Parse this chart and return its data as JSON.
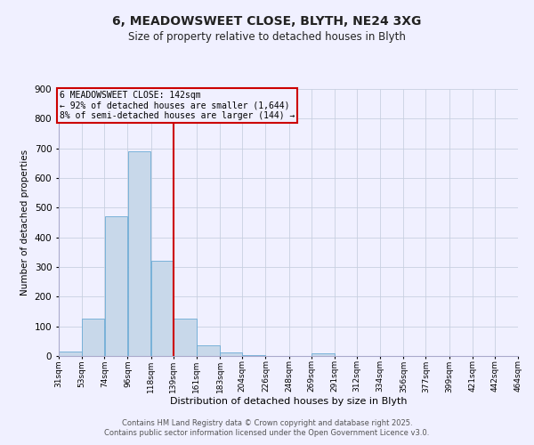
{
  "title": "6, MEADOWSWEET CLOSE, BLYTH, NE24 3XG",
  "subtitle": "Size of property relative to detached houses in Blyth",
  "xlabel": "Distribution of detached houses by size in Blyth",
  "ylabel": "Number of detached properties",
  "bar_edges": [
    31,
    53,
    74,
    96,
    118,
    139,
    161,
    183,
    204,
    226,
    248,
    269,
    291,
    312,
    334,
    356,
    377,
    399,
    421,
    442,
    464
  ],
  "bar_heights": [
    15,
    125,
    470,
    690,
    320,
    125,
    37,
    13,
    3,
    0,
    0,
    8,
    0,
    0,
    0,
    0,
    0,
    0,
    0,
    0
  ],
  "bar_color": "#c8d8ea",
  "bar_edgecolor": "#6aaad4",
  "vline_x": 139,
  "vline_color": "#cc0000",
  "annotation_box_text": "6 MEADOWSWEET CLOSE: 142sqm\n← 92% of detached houses are smaller (1,644)\n8% of semi-detached houses are larger (144) →",
  "annotation_box_color": "#cc0000",
  "ylim": [
    0,
    900
  ],
  "yticks": [
    0,
    100,
    200,
    300,
    400,
    500,
    600,
    700,
    800,
    900
  ],
  "tick_labels": [
    "31sqm",
    "53sqm",
    "74sqm",
    "96sqm",
    "118sqm",
    "139sqm",
    "161sqm",
    "183sqm",
    "204sqm",
    "226sqm",
    "248sqm",
    "269sqm",
    "291sqm",
    "312sqm",
    "334sqm",
    "356sqm",
    "377sqm",
    "399sqm",
    "421sqm",
    "442sqm",
    "464sqm"
  ],
  "footer_line1": "Contains HM Land Registry data © Crown copyright and database right 2025.",
  "footer_line2": "Contains public sector information licensed under the Open Government Licence v3.0.",
  "background_color": "#f0f0ff",
  "grid_color": "#c8d0e0"
}
